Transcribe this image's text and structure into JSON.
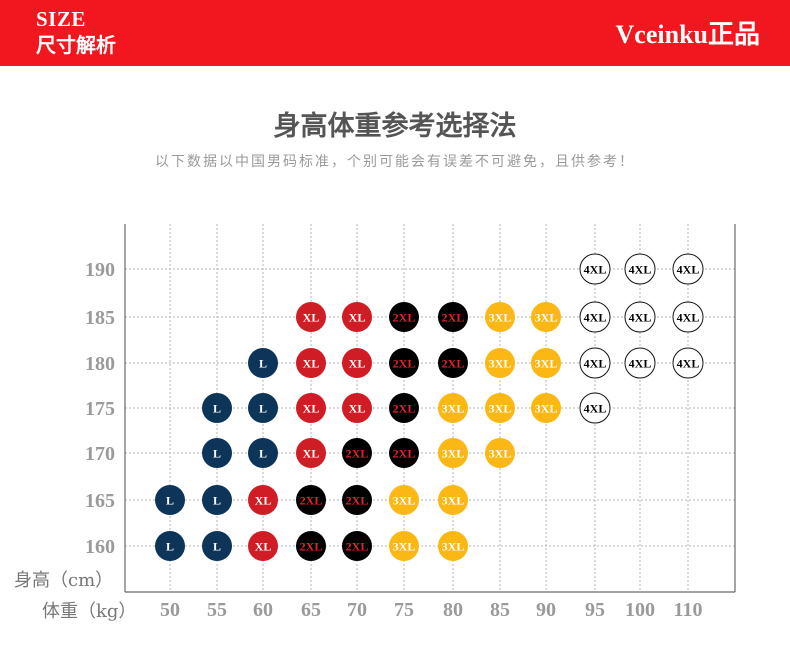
{
  "header": {
    "size_en": "SIZE",
    "size_zh": "尺寸解析",
    "brand": "Vceinku正品",
    "bg_color": "#f2161f"
  },
  "title": "身高体重参考选择法",
  "subtitle": "以下数据以中国男码标准，个别可能会有误差不可避免，且供参考！",
  "chart_data": {
    "type": "scatter",
    "ylabel": "身高（cm）",
    "xlabel": "体重（kg）",
    "x_ticks": [
      "50",
      "55",
      "60",
      "65",
      "70",
      "75",
      "80",
      "85",
      "90",
      "95",
      "100",
      "110"
    ],
    "y_ticks": [
      "160",
      "165",
      "170",
      "175",
      "180",
      "185",
      "190"
    ],
    "grid": true,
    "size_colors": {
      "L": {
        "fill": "#0d3459",
        "text": "#ffffff"
      },
      "XL": {
        "fill": "#d01c24",
        "text": "#ffffff"
      },
      "2XL": {
        "fill": "#000000",
        "text": "#e8202a"
      },
      "3XL": {
        "fill": "#fbb713",
        "text": "#ffffff"
      },
      "4XL": {
        "fill": "#ffffff",
        "text": "#000000"
      }
    },
    "rows": [
      {
        "height": "190",
        "sizes": [
          "",
          "",
          "",
          "",
          "",
          "",
          "",
          "",
          "",
          "4XL",
          "4XL",
          "4XL"
        ]
      },
      {
        "height": "185",
        "sizes": [
          "",
          "",
          "",
          "XL",
          "XL",
          "2XL",
          "2XL",
          "3XL",
          "3XL",
          "4XL",
          "4XL",
          "4XL"
        ]
      },
      {
        "height": "180",
        "sizes": [
          "",
          "",
          "L",
          "XL",
          "XL",
          "2XL",
          "2XL",
          "3XL",
          "3XL",
          "4XL",
          "4XL",
          "4XL"
        ]
      },
      {
        "height": "175",
        "sizes": [
          "",
          "L",
          "L",
          "XL",
          "XL",
          "2XL",
          "3XL",
          "3XL",
          "3XL",
          "4XL",
          "",
          ""
        ]
      },
      {
        "height": "170",
        "sizes": [
          "",
          "L",
          "L",
          "XL",
          "2XL",
          "2XL",
          "3XL",
          "3XL",
          "",
          "",
          "",
          ""
        ]
      },
      {
        "height": "165",
        "sizes": [
          "L",
          "L",
          "XL",
          "2XL",
          "2XL",
          "3XL",
          "3XL",
          "",
          "",
          "",
          "",
          ""
        ]
      },
      {
        "height": "160",
        "sizes": [
          "L",
          "L",
          "XL",
          "2XL",
          "2XL",
          "3XL",
          "3XL",
          "",
          "",
          "",
          "",
          ""
        ]
      }
    ]
  }
}
